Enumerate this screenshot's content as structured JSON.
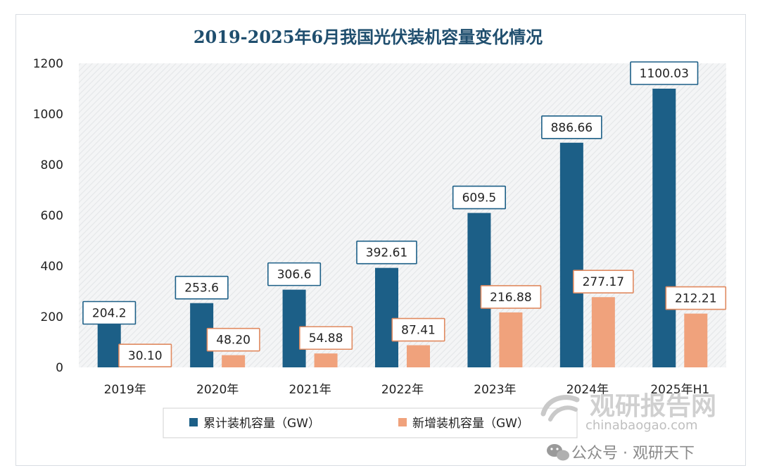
{
  "chart_data": {
    "type": "bar",
    "title": "2019-2025年6月我国光伏装机容量变化情况",
    "categories": [
      "2019年",
      "2020年",
      "2021年",
      "2022年",
      "2023年",
      "2024年",
      "2025年H1"
    ],
    "series": [
      {
        "name": "累计装机容量（GW）",
        "color": "#1c5f87",
        "values": [
          204.2,
          253.6,
          306.6,
          392.61,
          609.5,
          886.66,
          1100.03
        ],
        "labels": [
          "204.2",
          "253.6",
          "306.6",
          "392.61",
          "609.5",
          "886.66",
          "1100.03"
        ]
      },
      {
        "name": "新增装机容量（GW）",
        "color": "#f0a27c",
        "values": [
          30.1,
          48.2,
          54.88,
          87.41,
          216.88,
          277.17,
          212.21
        ],
        "labels": [
          "30.10",
          "48.20",
          "54.88",
          "87.41",
          "216.88",
          "277.17",
          "212.21"
        ]
      }
    ],
    "ylim": [
      0,
      1200
    ],
    "yticks": [
      0,
      200,
      400,
      600,
      800,
      1000,
      1200
    ],
    "xlabel": "",
    "ylabel": "",
    "grid": false,
    "legend": "bottom"
  },
  "watermark": {
    "brand": "观研报告网",
    "domain": "chinabaogao.com",
    "account": "公众号 · 观研天下"
  }
}
